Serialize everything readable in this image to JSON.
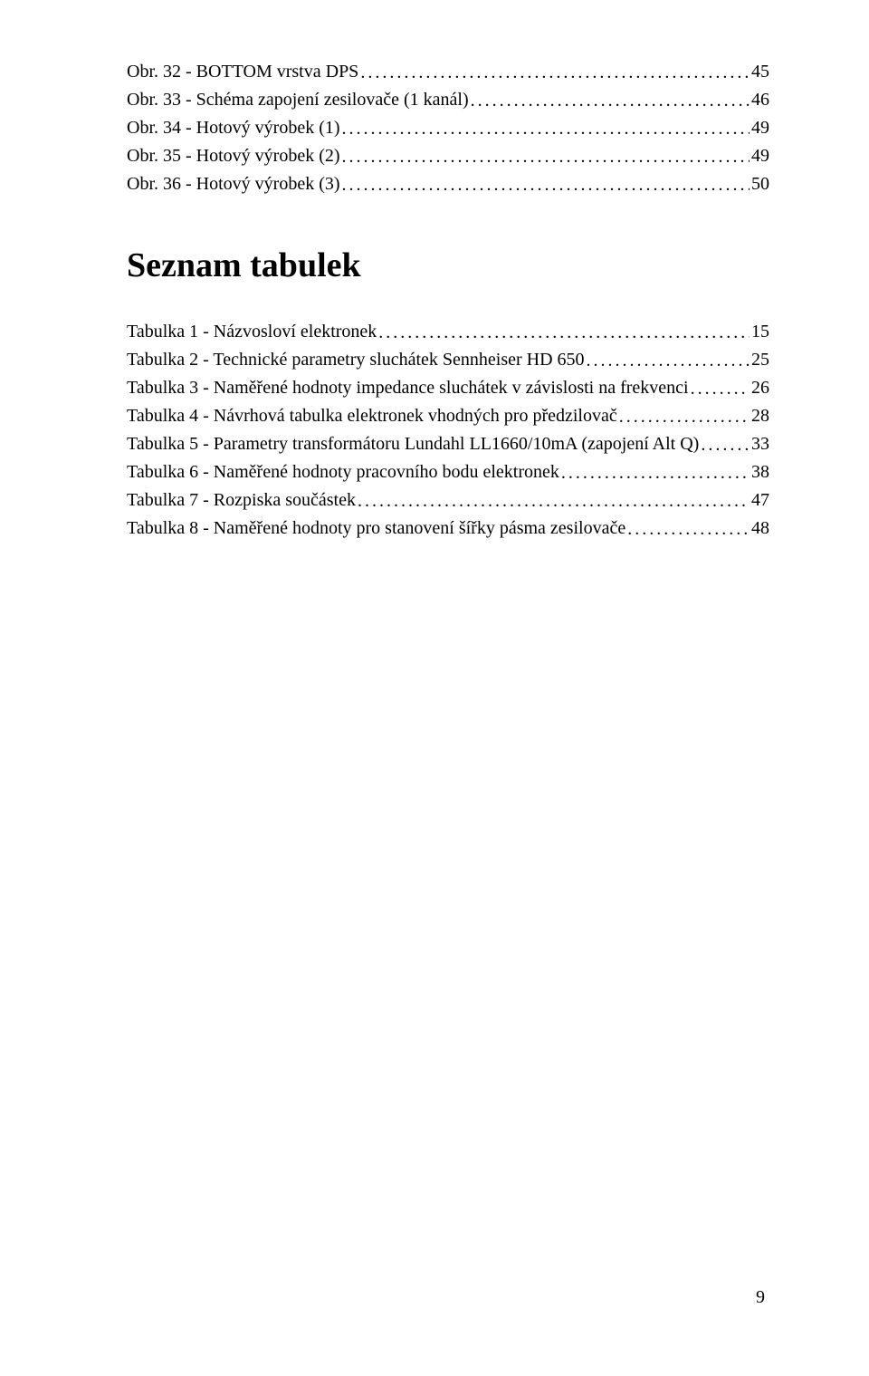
{
  "figures": [
    {
      "label": "Obr. 32 - BOTTOM vrstva DPS",
      "page": "45"
    },
    {
      "label": "Obr. 33 - Schéma zapojení zesilovače (1 kanál)",
      "page": "46"
    },
    {
      "label": "Obr. 34 - Hotový výrobek (1)",
      "page": "49"
    },
    {
      "label": "Obr. 35 - Hotový výrobek (2)",
      "page": "49"
    },
    {
      "label": "Obr. 36 - Hotový výrobek (3)",
      "page": "50"
    }
  ],
  "heading": "Seznam tabulek",
  "tables": [
    {
      "label": "Tabulka 1 - Názvosloví elektronek",
      "page": "15"
    },
    {
      "label": "Tabulka 2 - Technické parametry sluchátek Sennheiser HD 650",
      "page": "25"
    },
    {
      "label": "Tabulka 3 - Naměřené hodnoty impedance sluchátek v závislosti na frekvenci",
      "page": "26"
    },
    {
      "label": "Tabulka 4 - Návrhová tabulka elektronek vhodných pro předzilovač",
      "page": "28"
    },
    {
      "label": "Tabulka 5 - Parametry transformátoru Lundahl LL1660/10mA (zapojení Alt Q)",
      "page": "33"
    },
    {
      "label": "Tabulka 6 - Naměřené hodnoty pracovního bodu elektronek",
      "page": "38"
    },
    {
      "label": "Tabulka 7 - Rozpiska součástek",
      "page": "47"
    },
    {
      "label": "Tabulka 8 - Naměřené hodnoty pro stanovení šířky pásma zesilovače",
      "page": "48"
    }
  ],
  "pageNumber": "9"
}
